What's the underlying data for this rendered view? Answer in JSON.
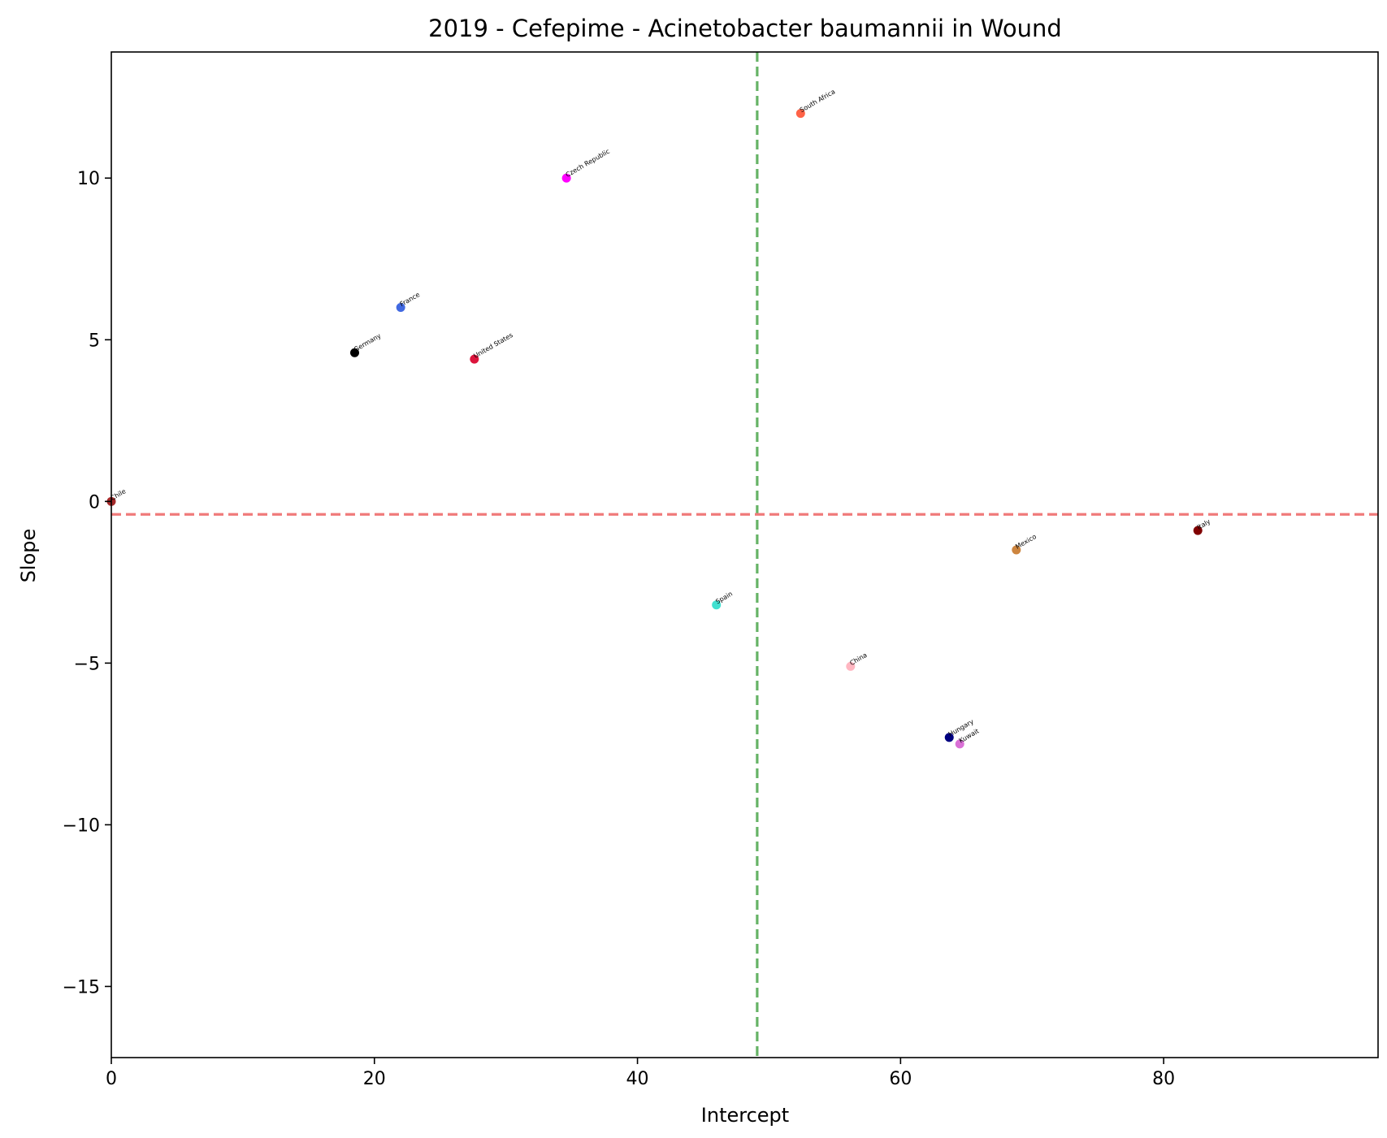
{
  "chart_data": {
    "type": "scatter",
    "title": "2019 - Cefepime - Acinetobacter baumannii in Wound",
    "xlabel": "Intercept",
    "ylabel": "Slope",
    "xlim": [
      0,
      96.3
    ],
    "ylim": [
      -17.2,
      13.9
    ],
    "x_ticks": [
      0,
      20,
      40,
      60,
      80
    ],
    "y_ticks": [
      -15,
      -10,
      -5,
      0,
      5,
      10
    ],
    "x_tick_labels": [
      "0",
      "20",
      "40",
      "60",
      "80"
    ],
    "y_tick_labels": [
      "−15",
      "−10",
      "−5",
      "0",
      "5",
      "10"
    ],
    "grid": false,
    "reference_lines": {
      "vertical_x": 49.1,
      "vertical_color": "#66b366",
      "horizontal_y": -0.4,
      "horizontal_color": "#f07a7a"
    },
    "points": [
      {
        "label": "Chile",
        "x": 0.0,
        "y": 0.0,
        "color": "#a52a2a"
      },
      {
        "label": "France",
        "x": 22.0,
        "y": 6.0,
        "color": "#4169e1"
      },
      {
        "label": "Germany",
        "x": 18.5,
        "y": 4.6,
        "color": "#000000"
      },
      {
        "label": "United States",
        "x": 27.6,
        "y": 4.4,
        "color": "#dc143c"
      },
      {
        "label": "Czech Republic",
        "x": 34.6,
        "y": 10.0,
        "color": "#ff00ff"
      },
      {
        "label": "South Africa",
        "x": 52.4,
        "y": 12.0,
        "color": "#ff6347"
      },
      {
        "label": "Spain",
        "x": 46.0,
        "y": -3.2,
        "color": "#40e0d0"
      },
      {
        "label": "China",
        "x": 56.2,
        "y": -5.1,
        "color": "#ffb6c1"
      },
      {
        "label": "Mexico",
        "x": 68.8,
        "y": -1.5,
        "color": "#cd853f"
      },
      {
        "label": "Italy",
        "x": 82.6,
        "y": -0.9,
        "color": "#800000"
      },
      {
        "label": "Hungary",
        "x": 63.7,
        "y": -7.3,
        "color": "#000080"
      },
      {
        "label": "Kuwait",
        "x": 64.5,
        "y": -7.5,
        "color": "#da70d6"
      }
    ]
  }
}
